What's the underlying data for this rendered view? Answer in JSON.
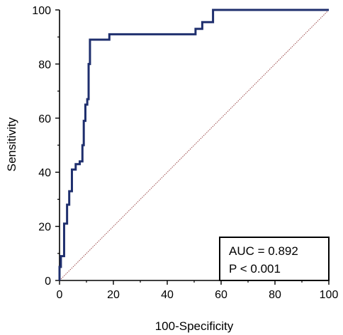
{
  "chart_data": {
    "type": "line",
    "title": "",
    "xlabel": "100-Specificity",
    "ylabel": "Sensitivity",
    "xlim": [
      0,
      100
    ],
    "ylim": [
      0,
      100
    ],
    "x_ticks": [
      0,
      20,
      40,
      60,
      80,
      100
    ],
    "y_ticks": [
      0,
      20,
      40,
      60,
      80,
      100
    ],
    "grid": false,
    "colors": {
      "roc_curve": "#1f2f6e",
      "reference_line": "#9b4a4a"
    },
    "series": [
      {
        "style": "step",
        "points": [
          [
            0,
            0
          ],
          [
            0,
            5
          ],
          [
            0.5,
            5
          ],
          [
            0.5,
            9
          ],
          [
            1.7,
            9
          ],
          [
            1.7,
            21
          ],
          [
            2.8,
            21
          ],
          [
            2.8,
            28
          ],
          [
            3.6,
            28
          ],
          [
            3.6,
            33
          ],
          [
            4.6,
            33
          ],
          [
            4.6,
            41
          ],
          [
            6,
            41
          ],
          [
            6,
            43
          ],
          [
            7.5,
            43
          ],
          [
            7.5,
            44
          ],
          [
            8.5,
            44
          ],
          [
            8.5,
            50
          ],
          [
            9,
            50
          ],
          [
            9,
            59
          ],
          [
            9.6,
            59
          ],
          [
            9.6,
            65
          ],
          [
            10.3,
            65
          ],
          [
            10.3,
            67
          ],
          [
            10.8,
            67
          ],
          [
            10.8,
            80
          ],
          [
            11.3,
            80
          ],
          [
            11.3,
            89
          ],
          [
            18.5,
            89
          ],
          [
            18.5,
            91
          ],
          [
            50.5,
            91
          ],
          [
            50.5,
            93
          ],
          [
            53,
            93
          ],
          [
            53,
            95.5
          ],
          [
            57,
            95.5
          ],
          [
            57,
            100
          ],
          [
            100,
            100
          ]
        ]
      },
      {
        "style": "dotted",
        "points": [
          [
            0,
            0
          ],
          [
            100,
            100
          ]
        ]
      }
    ],
    "annotations": {
      "auc": "AUC = 0.892",
      "p_value": "P < 0.001"
    },
    "legend_position": "bottom-right"
  }
}
